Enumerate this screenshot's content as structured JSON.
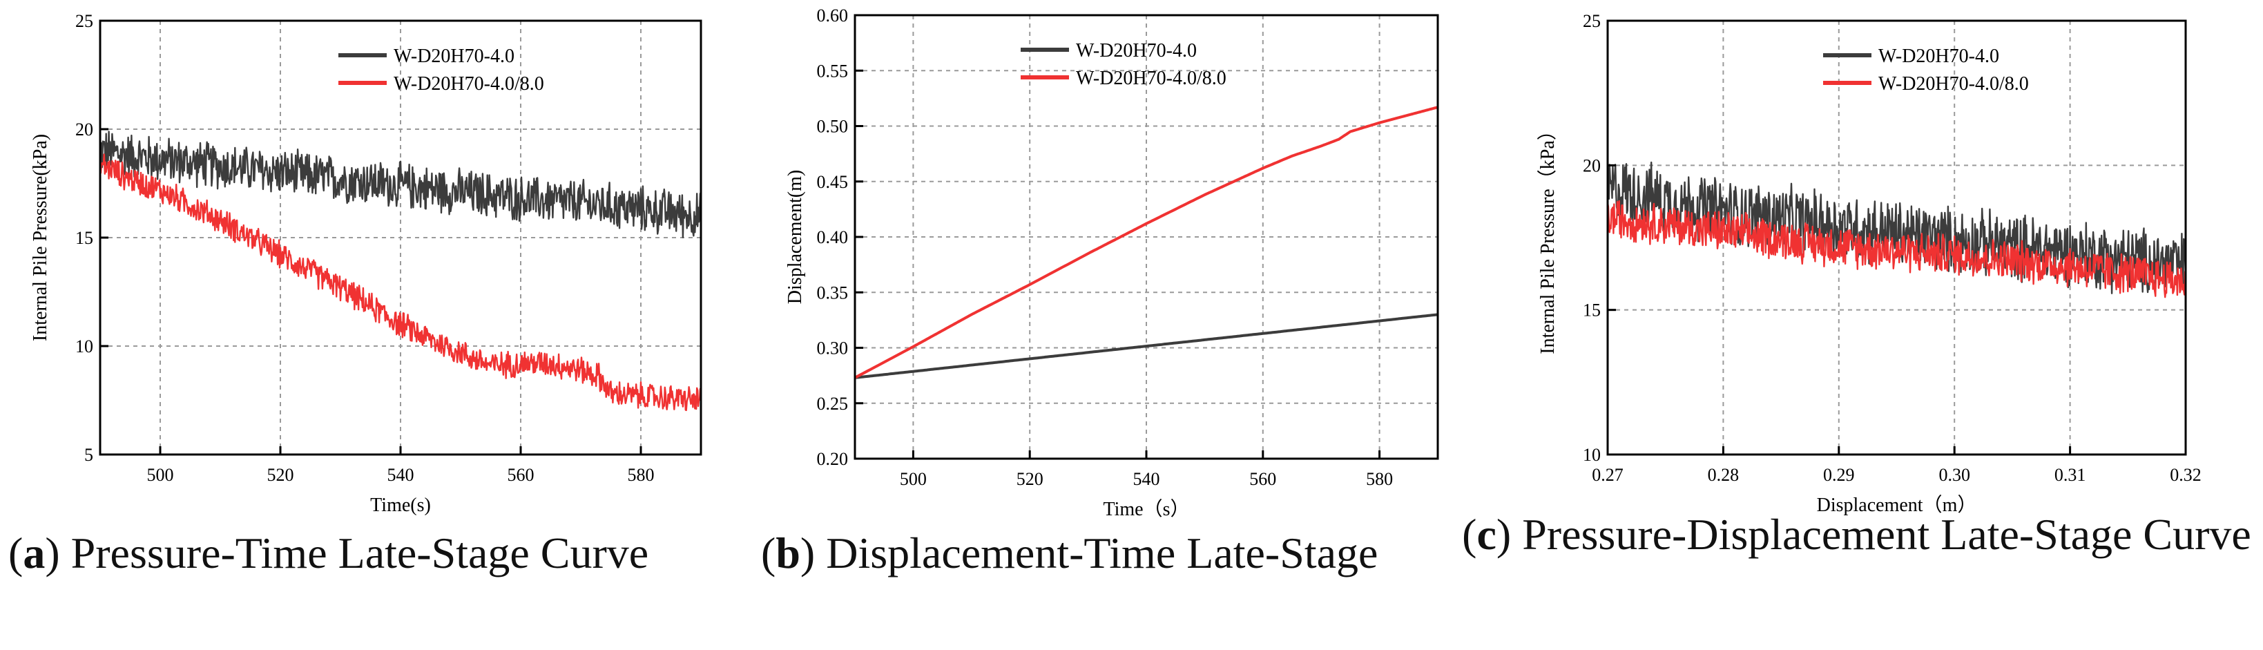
{
  "legend_labels": [
    "W-D20H70-4.0",
    "W-D20H70-4.0/8.0"
  ],
  "colors": {
    "series_1": "#3c3c3c",
    "series_2": "#f03232",
    "grid": "#9a9a9a",
    "axis": "#000000"
  },
  "captions": [
    {
      "letter": "a",
      "text": "Pressure-Time Late-Stage Curve"
    },
    {
      "letter": "b",
      "text": "Displacement-Time Late-Stage"
    },
    {
      "letter": "c",
      "text": "Pressure-Displacement Late-Stage Curve"
    }
  ],
  "chart_data": [
    {
      "type": "line",
      "xlabel": "Time(s)",
      "ylabel": "Internal Pile Pressure(kPa)",
      "xlim": [
        490,
        590
      ],
      "ylim": [
        5,
        25
      ],
      "xticks": [
        "500",
        "520",
        "540",
        "560",
        "580"
      ],
      "yticks": [
        "5",
        "10",
        "15",
        "20",
        "25"
      ],
      "grid": true,
      "legend": "top-center",
      "series": [
        {
          "name": "W-D20H70-4.0",
          "x": [
            490,
            500,
            510,
            520,
            530,
            540,
            550,
            560,
            570,
            580,
            590
          ],
          "y": [
            19.0,
            18.6,
            18.3,
            18.0,
            17.7,
            17.4,
            17.1,
            16.8,
            16.6,
            16.3,
            16.0
          ],
          "noise": 1.2
        },
        {
          "name": "W-D20H70-4.0/8.0",
          "x": [
            490,
            495,
            500,
            510,
            520,
            530,
            540,
            545,
            550,
            555,
            560,
            565,
            570,
            573,
            575,
            580,
            585,
            590
          ],
          "y": [
            18.4,
            17.7,
            17.2,
            15.8,
            14.2,
            12.7,
            11.0,
            10.3,
            9.7,
            9.1,
            9.2,
            9.2,
            8.9,
            8.6,
            7.8,
            7.7,
            7.6,
            7.5
          ],
          "noise": 0.7
        }
      ]
    },
    {
      "type": "line",
      "xlabel": "Time（s）",
      "ylabel": "Displacement(m)",
      "xlim": [
        490,
        590
      ],
      "ylim": [
        0.2,
        0.6
      ],
      "xticks": [
        "500",
        "520",
        "540",
        "560",
        "580"
      ],
      "yticks": [
        "0.20",
        "0.25",
        "0.30",
        "0.35",
        "0.40",
        "0.45",
        "0.50",
        "0.55",
        "0.60"
      ],
      "grid": true,
      "legend": "top-center",
      "series": [
        {
          "name": "W-D20H70-4.0",
          "x": [
            490,
            590
          ],
          "y": [
            0.273,
            0.33
          ],
          "noise": 0
        },
        {
          "name": "W-D20H70-4.0/8.0",
          "x": [
            490,
            500,
            510,
            520,
            530,
            540,
            550,
            560,
            565,
            570,
            573,
            575,
            580,
            585,
            590
          ],
          "y": [
            0.273,
            0.301,
            0.33,
            0.357,
            0.385,
            0.412,
            0.438,
            0.462,
            0.473,
            0.482,
            0.488,
            0.495,
            0.503,
            0.51,
            0.517
          ],
          "noise": 0
        }
      ]
    },
    {
      "type": "line",
      "xlabel": "Displacement（m）",
      "ylabel": "Internal Pile Pressure（kPa）",
      "xlim": [
        0.27,
        0.32
      ],
      "ylim": [
        10,
        25
      ],
      "xticks": [
        "0.27",
        "0.28",
        "0.29",
        "0.30",
        "0.31",
        "0.32"
      ],
      "yticks": [
        "10",
        "15",
        "20",
        "25"
      ],
      "grid": true,
      "legend": "top-center",
      "series": [
        {
          "name": "W-D20H70-4.0",
          "x": [
            0.27,
            0.28,
            0.29,
            0.3,
            0.31,
            0.32
          ],
          "y": [
            19.2,
            18.4,
            17.9,
            17.4,
            17.0,
            16.5
          ],
          "noise": 1.3
        },
        {
          "name": "W-D20H70-4.0/8.0",
          "x": [
            0.27,
            0.28,
            0.29,
            0.3,
            0.31,
            0.32
          ],
          "y": [
            18.2,
            17.7,
            17.2,
            16.9,
            16.5,
            16.0
          ],
          "noise": 0.8
        }
      ]
    }
  ]
}
